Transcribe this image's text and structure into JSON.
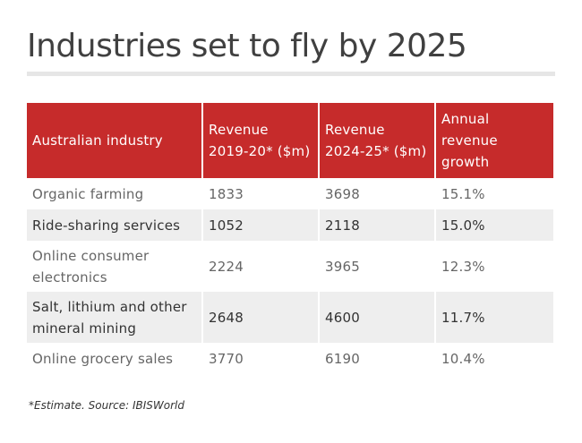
{
  "title": "Industries set to fly by 2025",
  "colors": {
    "header_bg": "#c62b2b",
    "header_text": "#ffffff",
    "shaded_row_bg": "#eeeeee",
    "rule": "#e6e6e6"
  },
  "table": {
    "headers": [
      "Australian industry",
      "Revenue 2019-20* ($m)",
      "Revenue 2024-25* ($m)",
      "Annual revenue growth"
    ],
    "rows": [
      {
        "industry": "Organic farming",
        "revenue_2019_20": "1833",
        "revenue_2024_25": "3698",
        "growth": "15.1%"
      },
      {
        "industry": "Ride-sharing services",
        "revenue_2019_20": "1052",
        "revenue_2024_25": "2118",
        "growth": "15.0%"
      },
      {
        "industry": "Online consumer electronics",
        "revenue_2019_20": "2224",
        "revenue_2024_25": "3965",
        "growth": "12.3%"
      },
      {
        "industry": "Salt, lithium and other mineral mining",
        "revenue_2019_20": "2648",
        "revenue_2024_25": "4600",
        "growth": "11.7%"
      },
      {
        "industry": "Online grocery sales",
        "revenue_2019_20": "3770",
        "revenue_2024_25": "6190",
        "growth": "10.4%"
      }
    ]
  },
  "footnote": "*Estimate. Source: IBISWorld"
}
